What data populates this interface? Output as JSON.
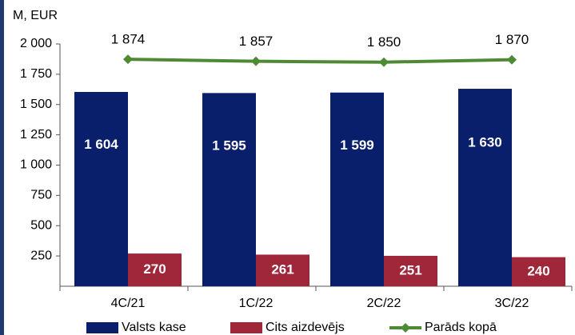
{
  "chart_data": {
    "type": "bar",
    "axis_label": "M, EUR",
    "categories": [
      "4C/21",
      "1C/22",
      "2C/22",
      "3C/22"
    ],
    "series": [
      {
        "name": "Valsts kase",
        "color": "#0a1f6b",
        "values": [
          1604,
          1595,
          1599,
          1630
        ],
        "value_labels": [
          "1 604",
          "1 595",
          "1 599",
          "1 630"
        ]
      },
      {
        "name": "Cits aizdevējs",
        "color": "#a0263a",
        "values": [
          270,
          261,
          251,
          240
        ]
      },
      {
        "name": "Parāds kopā",
        "type": "line",
        "color": "#4e8a34",
        "values": [
          1874,
          1857,
          1850,
          1870
        ],
        "value_labels": [
          "1 874",
          "1 857",
          "1 850",
          "1 870"
        ]
      }
    ],
    "ylim": [
      0,
      2000
    ],
    "yticks": [
      250,
      500,
      750,
      {
        "value": 1000,
        "label": "1 000"
      },
      {
        "value": 1250,
        "label": "1 250"
      },
      {
        "value": 1500,
        "label": "1 500"
      },
      {
        "value": 1750,
        "label": "1 750"
      },
      {
        "value": 2000,
        "label": "2 000"
      }
    ]
  }
}
